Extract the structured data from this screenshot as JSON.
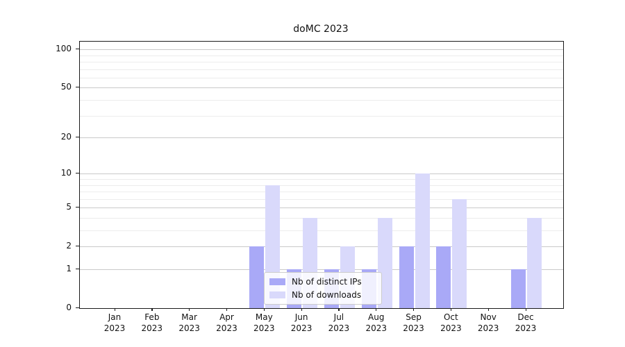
{
  "chart_data": {
    "type": "bar",
    "title": "doMC 2023",
    "categories": [
      {
        "month": "Jan",
        "year": "2023"
      },
      {
        "month": "Feb",
        "year": "2023"
      },
      {
        "month": "Mar",
        "year": "2023"
      },
      {
        "month": "Apr",
        "year": "2023"
      },
      {
        "month": "May",
        "year": "2023"
      },
      {
        "month": "Jun",
        "year": "2023"
      },
      {
        "month": "Jul",
        "year": "2023"
      },
      {
        "month": "Aug",
        "year": "2023"
      },
      {
        "month": "Sep",
        "year": "2023"
      },
      {
        "month": "Oct",
        "year": "2023"
      },
      {
        "month": "Nov",
        "year": "2023"
      },
      {
        "month": "Dec",
        "year": "2023"
      }
    ],
    "series": [
      {
        "name": "Nb of distinct IPs",
        "color": "#a9a9f7",
        "values": [
          0,
          0,
          0,
          0,
          2,
          1,
          1,
          1,
          2,
          2,
          0,
          1
        ]
      },
      {
        "name": "Nb of downloads",
        "color": "#d9d9fb",
        "values": [
          0,
          0,
          0,
          0,
          8,
          4,
          2,
          4,
          10,
          6,
          0,
          4
        ]
      }
    ],
    "xlabel": "",
    "ylabel": "",
    "yscale": "log1p",
    "ylim": [
      0,
      115
    ],
    "yticks_major": [
      0,
      1,
      2,
      5,
      10,
      20,
      50,
      100
    ],
    "yticks_minor": [
      3,
      4,
      6,
      7,
      8,
      9,
      30,
      40,
      60,
      70,
      80,
      90
    ],
    "grid": "on",
    "legend_position": "lower center",
    "colors": {
      "axis": "#1a1a1a",
      "gridline_major": "#c9c9c9",
      "gridline_minor": "#ececec",
      "legend_border": "#cccccc"
    }
  }
}
